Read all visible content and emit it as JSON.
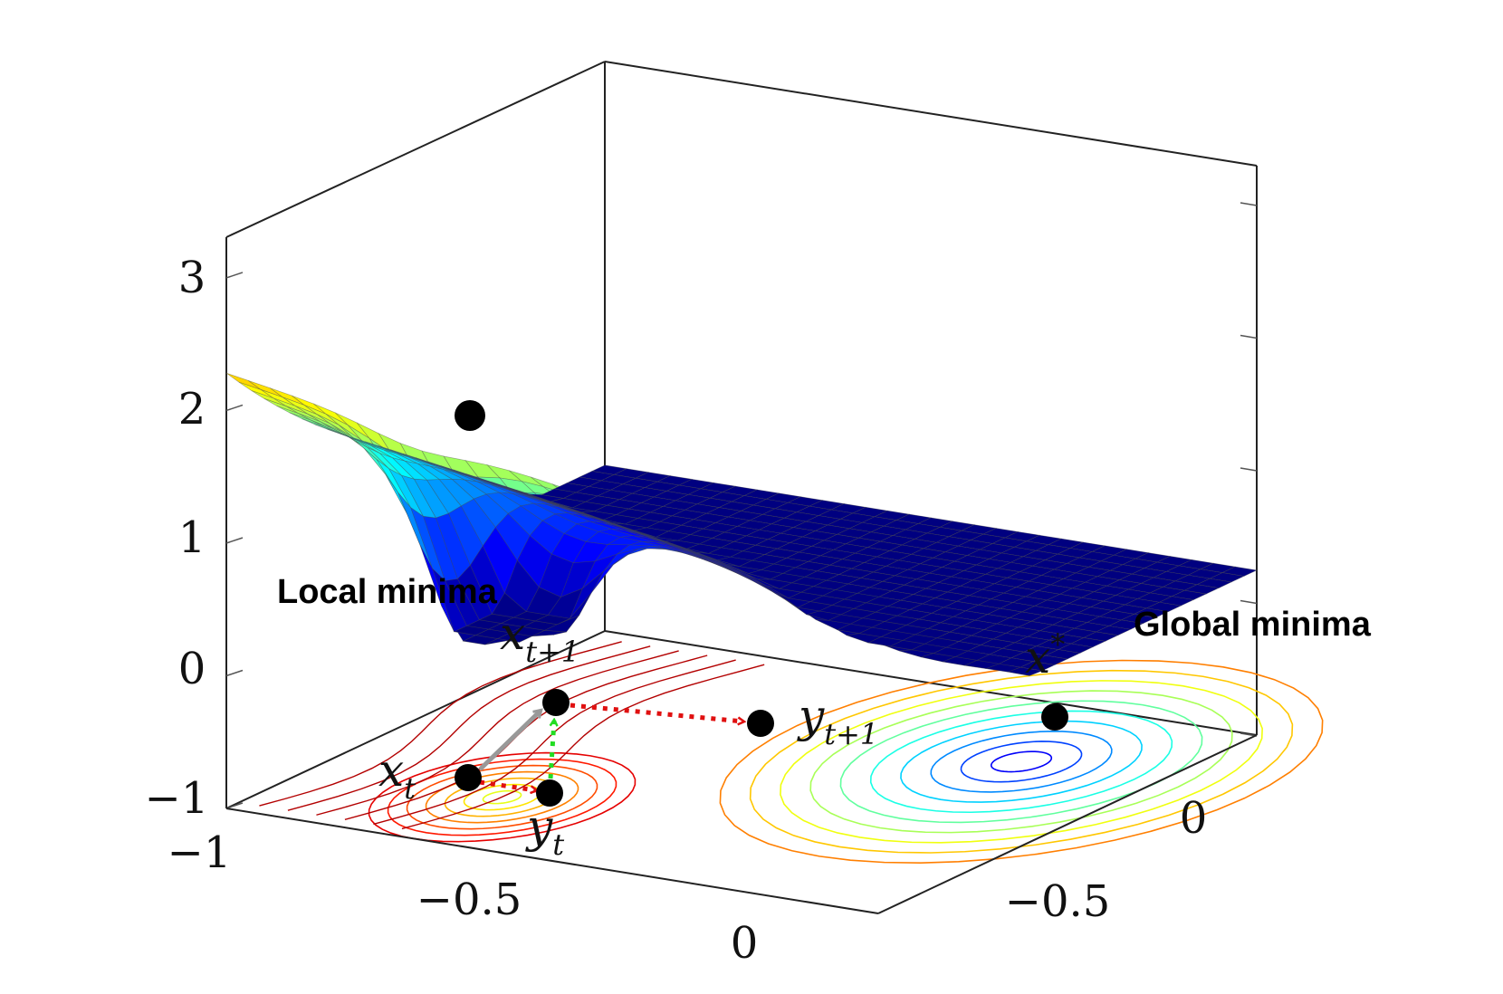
{
  "chart_data": {
    "type": "surface",
    "title": "",
    "xlabel": "",
    "ylabel": "",
    "zlabel": "",
    "xlim": [
      -1,
      0.6
    ],
    "ylim": [
      -0.9,
      0.6
    ],
    "zlim": [
      -1,
      3.3
    ],
    "x_ticks": [
      "−1",
      "−0.5",
      "0"
    ],
    "y_ticks": [
      "−0.5",
      "0"
    ],
    "z_ticks": [
      "3",
      "2",
      "1",
      "0",
      "−1"
    ],
    "colormap": "jet",
    "contour_projection": true,
    "local_min": {
      "x": -0.54,
      "y": -0.55,
      "z": 0.3
    },
    "global_min": {
      "x": 0.27,
      "y": 0.2,
      "z": 0.55
    },
    "annotations": {
      "local_minima": "Local minima",
      "global_minima": "Global minima"
    },
    "points": [
      {
        "name": "x_t",
        "base": "x",
        "sub": "t"
      },
      {
        "name": "y_t",
        "base": "y",
        "sub": "t"
      },
      {
        "name": "x_t+1",
        "base": "x",
        "sub": "t+1"
      },
      {
        "name": "y_t+1",
        "base": "y",
        "sub": "t+1"
      },
      {
        "name": "x_star",
        "base": "x",
        "sup": "*"
      }
    ],
    "arrows": [
      {
        "from": "x_t",
        "to": "y_t",
        "style": "red-dotted"
      },
      {
        "from": "y_t",
        "to": "x_t+1",
        "style": "green-dotted"
      },
      {
        "from": "x_t",
        "to": "x_t+1",
        "style": "gray-solid"
      },
      {
        "from": "x_t+1",
        "to": "y_t+1",
        "style": "red-dotted"
      }
    ]
  }
}
